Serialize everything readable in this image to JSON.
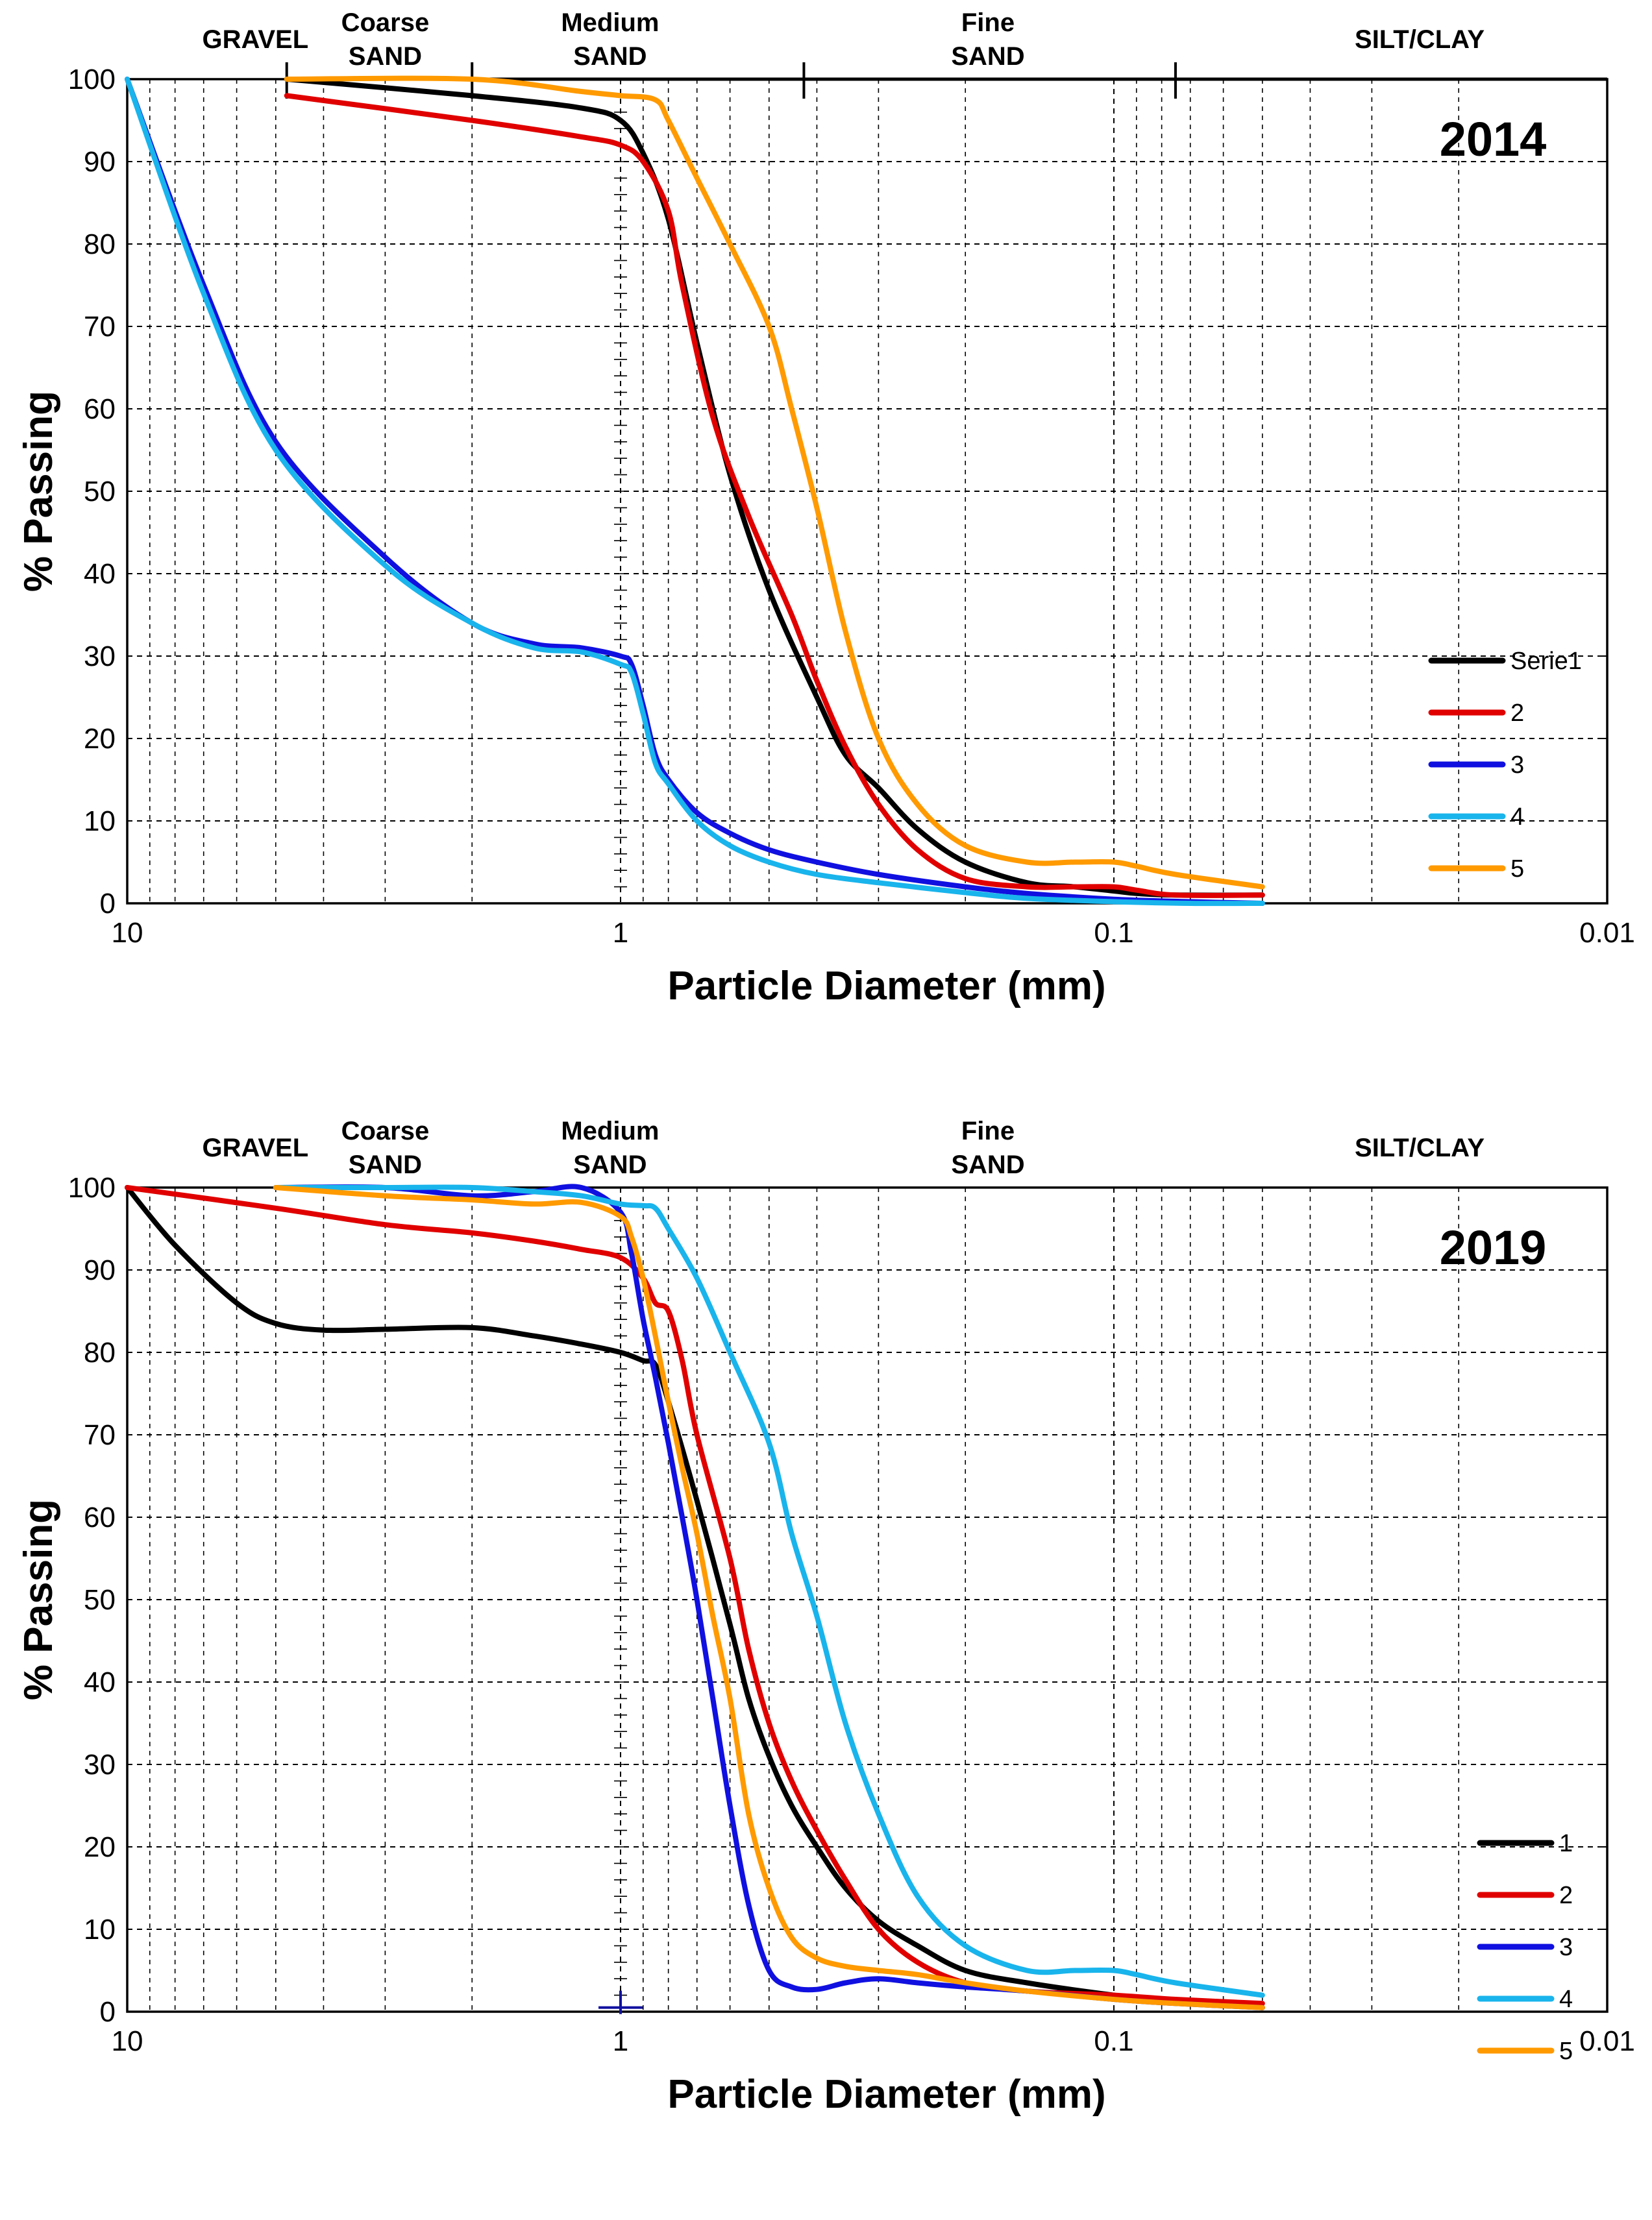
{
  "charts": [
    {
      "id": "2014",
      "year_label": "2014",
      "bands": [
        {
          "label_lines": [
            "GRAVEL"
          ],
          "d_center": 5.5
        },
        {
          "label_lines": [
            "Coarse",
            "SAND"
          ],
          "d_center": 3.0
        },
        {
          "label_lines": [
            "Medium",
            "SAND"
          ],
          "d_center": 1.05
        },
        {
          "label_lines": [
            "Fine",
            "SAND"
          ],
          "d_center": 0.18
        },
        {
          "label_lines": [
            "SILT/CLAY"
          ],
          "d_center": 0.024
        }
      ],
      "band_ticks": [
        4.75,
        2.0,
        0.425,
        0.075
      ],
      "band_top_line": true,
      "chart_data": {
        "type": "line",
        "x_scale": "log",
        "xlim": [
          10,
          0.01
        ],
        "ylim": [
          0,
          100
        ],
        "xlabel": "Particle Diameter (mm)",
        "ylabel": "% Passing",
        "x_ticks": [
          "10",
          "1",
          "0.1",
          "0.01"
        ],
        "y_ticks": [
          "0",
          "10",
          "20",
          "30",
          "40",
          "50",
          "60",
          "70",
          "80",
          "90",
          "100"
        ],
        "legend_position": "bottom-right",
        "series": [
          {
            "name": "Serie1",
            "color": "#000000",
            "x": [
              4.75,
              2.0,
              1.2,
              1.0,
              0.9,
              0.8,
              0.7,
              0.6,
              0.5,
              0.4,
              0.35,
              0.3,
              0.25,
              0.2,
              0.15,
              0.12,
              0.1,
              0.09,
              0.075,
              0.05
            ],
            "y": [
              100,
              98,
              96.5,
              95,
              91,
              83,
              68,
              52,
              38,
              25,
              18,
              14,
              9,
              5,
              2.5,
              2,
              1.5,
              1.2,
              1,
              1
            ]
          },
          {
            "name": "2",
            "color": "#e00000",
            "x": [
              4.75,
              2.0,
              1.2,
              1.0,
              0.9,
              0.8,
              0.75,
              0.65,
              0.55,
              0.45,
              0.4,
              0.35,
              0.3,
              0.25,
              0.2,
              0.15,
              0.12,
              0.1,
              0.09,
              0.075,
              0.05
            ],
            "y": [
              98,
              95,
              93,
              92,
              90,
              84,
              75,
              59,
              47,
              35,
              27,
              19,
              12,
              6.5,
              3,
              2,
              2,
              2,
              1.6,
              1,
              1
            ]
          },
          {
            "name": "3",
            "color": "#1010e0",
            "x": [
              10,
              7,
              5,
              3,
              2,
              1.5,
              1.2,
              1.0,
              0.95,
              0.9,
              0.85,
              0.8,
              0.7,
              0.6,
              0.5,
              0.4,
              0.3,
              0.2,
              0.15,
              0.1,
              0.07,
              0.05
            ],
            "y": [
              100,
              75,
              56,
              42,
              34,
              31.5,
              31,
              30,
              29,
              24,
              18,
              15,
              11,
              8.5,
              6.5,
              5,
              3.5,
              2,
              1.2,
              0.5,
              0.2,
              0
            ]
          },
          {
            "name": "4",
            "color": "#19b4ec",
            "x": [
              10,
              7,
              5,
              3,
              2,
              1.5,
              1.2,
              1.0,
              0.95,
              0.9,
              0.85,
              0.8,
              0.7,
              0.6,
              0.5,
              0.4,
              0.3,
              0.2,
              0.15,
              0.1,
              0.07,
              0.05
            ],
            "y": [
              100,
              74,
              55,
              41,
              34,
              31,
              30.5,
              29,
              28,
              23,
              17,
              14.5,
              10,
              7,
              5,
              3.5,
              2.5,
              1.3,
              0.6,
              0.2,
              0,
              0
            ]
          },
          {
            "name": "5",
            "color": "#ff9a00",
            "x": [
              4.75,
              2.0,
              1.2,
              1.0,
              0.85,
              0.8,
              0.7,
              0.6,
              0.5,
              0.45,
              0.4,
              0.35,
              0.3,
              0.25,
              0.2,
              0.15,
              0.12,
              0.1,
              0.09,
              0.075,
              0.05
            ],
            "y": [
              100,
              100,
              98.5,
              98,
              97.5,
              95,
              88,
              80,
              70,
              60,
              48,
              33,
              20,
              12,
              7,
              5,
              5,
              5,
              4.5,
              3.5,
              2
            ]
          }
        ]
      }
    },
    {
      "id": "2019",
      "year_label": "2019",
      "bands": [
        {
          "label_lines": [
            "GRAVEL"
          ],
          "d_center": 5.5
        },
        {
          "label_lines": [
            "Coarse",
            "SAND"
          ],
          "d_center": 3.0
        },
        {
          "label_lines": [
            "Medium",
            "SAND"
          ],
          "d_center": 1.05
        },
        {
          "label_lines": [
            "Fine",
            "SAND"
          ],
          "d_center": 0.18
        },
        {
          "label_lines": [
            "SILT/CLAY"
          ],
          "d_center": 0.024
        }
      ],
      "band_ticks": [],
      "band_top_line": false,
      "chart_data": {
        "type": "line",
        "x_scale": "log",
        "xlim": [
          10,
          0.01
        ],
        "ylim": [
          0,
          100
        ],
        "xlabel": "Particle Diameter (mm)",
        "ylabel": "% Passing",
        "x_ticks": [
          "10",
          "1",
          "0.1",
          "0.01"
        ],
        "y_ticks": [
          "0",
          "10",
          "20",
          "30",
          "40",
          "50",
          "60",
          "70",
          "80",
          "90",
          "100"
        ],
        "legend_position": "bottom-right",
        "series": [
          {
            "name": "1",
            "color": "#000000",
            "x": [
              10,
              8,
              6,
              5,
              4,
              3,
              2,
              1.5,
              1.2,
              1.0,
              0.9,
              0.85,
              0.8,
              0.7,
              0.6,
              0.55,
              0.5,
              0.45,
              0.4,
              0.35,
              0.3,
              0.25,
              0.2,
              0.15,
              0.1,
              0.075,
              0.05
            ],
            "y": [
              100,
              93,
              86,
              83.5,
              82.7,
              82.8,
              83,
              82,
              81,
              80,
              79,
              78.5,
              74,
              62,
              47,
              38,
              31,
              25,
              20,
              15,
              11,
              8,
              5,
              3.5,
              2,
              1.2,
              0.5
            ]
          },
          {
            "name": "2",
            "color": "#e00000",
            "x": [
              10,
              5,
              3,
              2,
              1.5,
              1.2,
              1.0,
              0.9,
              0.85,
              0.8,
              0.75,
              0.7,
              0.6,
              0.55,
              0.5,
              0.45,
              0.4,
              0.35,
              0.3,
              0.25,
              0.2,
              0.15,
              0.1,
              0.075,
              0.05
            ],
            "y": [
              100,
              97.5,
              95.5,
              94.5,
              93.5,
              92.5,
              91.5,
              89,
              86,
              85,
              79,
              70,
              55,
              44,
              35,
              28,
              22,
              16,
              10,
              6,
              3.5,
              2.5,
              2,
              1.5,
              1
            ]
          },
          {
            "name": "3",
            "color": "#1010e0",
            "x": [
              5,
              3,
              2,
              1.5,
              1.2,
              1.0,
              0.95,
              0.9,
              0.85,
              0.8,
              0.75,
              0.7,
              0.65,
              0.6,
              0.55,
              0.5,
              0.45,
              0.4,
              0.35,
              0.3,
              0.25,
              0.2,
              0.15,
              0.1,
              0.075,
              0.05
            ],
            "y": [
              100,
              100,
              99,
              99.5,
              100,
              97,
              92,
              84,
              77,
              69,
              60,
              50,
              38,
              25,
              13,
              5,
              3,
              2.7,
              3.5,
              4,
              3.5,
              3,
              2.5,
              1.5,
              1,
              0.5
            ]
          },
          {
            "name": "4",
            "color": "#19b4ec",
            "x": [
              5,
              3,
              2,
              1.5,
              1.2,
              1.0,
              0.9,
              0.85,
              0.8,
              0.7,
              0.6,
              0.5,
              0.45,
              0.4,
              0.35,
              0.3,
              0.25,
              0.2,
              0.15,
              0.12,
              0.1,
              0.09,
              0.075,
              0.05
            ],
            "y": [
              100,
              100,
              100,
              99.5,
              99,
              98,
              97.8,
              97.5,
              95,
              89,
              80,
              69,
              58,
              48,
              35,
              24,
              14,
              8,
              5,
              5,
              5,
              4.5,
              3.5,
              2
            ]
          },
          {
            "name": "5",
            "color": "#ff9a00",
            "x": [
              5,
              3,
              2,
              1.5,
              1.2,
              1.0,
              0.95,
              0.9,
              0.85,
              0.8,
              0.75,
              0.7,
              0.65,
              0.6,
              0.55,
              0.5,
              0.45,
              0.4,
              0.35,
              0.3,
              0.25,
              0.2,
              0.15,
              0.1,
              0.075,
              0.05
            ],
            "y": [
              100,
              99,
              98.5,
              98,
              98.2,
              96.5,
              94,
              89,
              82,
              74,
              66,
              58,
              48,
              38,
              24,
              15,
              9,
              6.5,
              5.5,
              5,
              4.5,
              3.5,
              2.5,
              1.5,
              1,
              0.5
            ]
          }
        ]
      }
    }
  ]
}
